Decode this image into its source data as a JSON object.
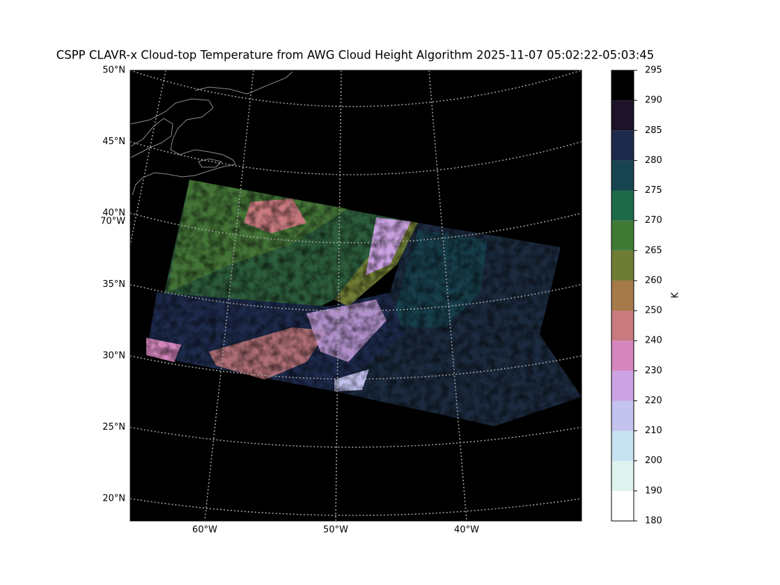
{
  "title": "CSPP CLAVR-x Cloud-top Temperature from AWG Cloud Height Algorithm 2025-11-07 05:02:22-05:03:45",
  "map": {
    "latitudes": [
      {
        "value": 50,
        "label": "50°N"
      },
      {
        "value": 45,
        "label": "45°N"
      },
      {
        "value": 40,
        "label": "40°N"
      },
      {
        "value": 35,
        "label": "35°N"
      },
      {
        "value": 30,
        "label": "30°N"
      },
      {
        "value": 25,
        "label": "25°N"
      },
      {
        "value": 20,
        "label": "20°N"
      }
    ],
    "longitudes": [
      {
        "value": -60,
        "label": "60°W"
      },
      {
        "value": -50,
        "label": "50°W"
      },
      {
        "value": -40,
        "label": "40°W"
      }
    ],
    "left_longitude": {
      "value": -70,
      "label": "70°W"
    },
    "grid_color": "#a0a0a0",
    "coast_color": "#8c8c8c"
  },
  "colorbar": {
    "ticks": [
      180,
      190,
      200,
      210,
      220,
      230,
      240,
      250,
      260,
      265,
      270,
      275,
      280,
      285,
      290,
      295
    ],
    "colors": [
      "#ffffff",
      "#dff3ee",
      "#c6e2f1",
      "#c4c3f0",
      "#cba2e2",
      "#d586bd",
      "#c87a7e",
      "#a57a4b",
      "#6f7c35",
      "#407a35",
      "#1d6a4a",
      "#17444f",
      "#1d2a4b",
      "#1c1329",
      "#000000"
    ],
    "label": "K"
  }
}
